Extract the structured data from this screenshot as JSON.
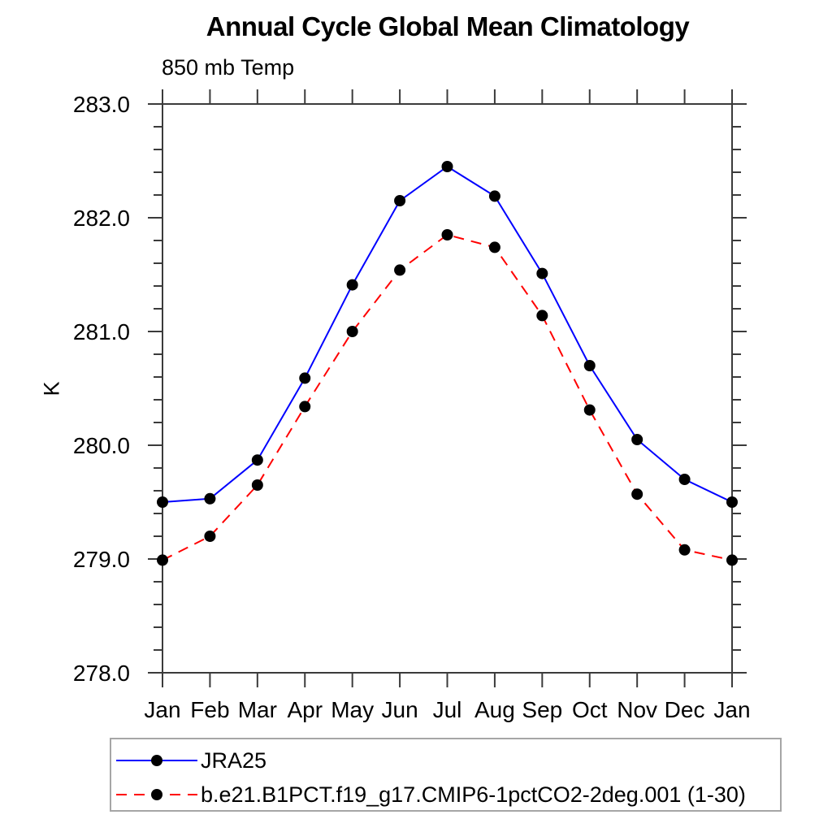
{
  "window": {
    "background": "#ffffff"
  },
  "chart_data": {
    "type": "line",
    "title": "Annual Cycle Global Mean Climatology",
    "subtitle": "850 mb Temp",
    "ylabel": "K",
    "xlabel": "",
    "x_tick_labels": [
      "Jan",
      "Feb",
      "Mar",
      "Apr",
      "May",
      "Jun",
      "Jul",
      "Aug",
      "Sep",
      "Oct",
      "Nov",
      "Dec",
      "Jan"
    ],
    "ylim": [
      278.0,
      283.0
    ],
    "ytick_labels": [
      "278.0",
      "279.0",
      "280.0",
      "281.0",
      "282.0",
      "283.0"
    ],
    "ytick_step": 1.0,
    "ytick_minor_step": 0.2,
    "grid": false,
    "frame": "box-with-outward-ticks",
    "legend_position": "below-plot-left",
    "axis_color": "#3b3b3b",
    "series": [
      {
        "name": "JRA25",
        "color": "#0000ff",
        "line_style": "solid",
        "marker": "filled-circle",
        "marker_color": "#000000",
        "values": [
          279.5,
          279.53,
          279.87,
          280.59,
          281.41,
          282.15,
          282.45,
          282.19,
          281.51,
          280.7,
          280.05,
          279.7,
          279.5
        ]
      },
      {
        "name": "b.e21.B1PCT.f19_g17.CMIP6-1pctCO2-2deg.001 (1-30)",
        "color": "#ff0000",
        "line_style": "dashed",
        "marker": "filled-circle",
        "marker_color": "#000000",
        "values": [
          278.99,
          279.2,
          279.65,
          280.34,
          281.0,
          281.54,
          281.85,
          281.74,
          281.14,
          280.31,
          279.57,
          279.08,
          278.99
        ]
      }
    ]
  }
}
